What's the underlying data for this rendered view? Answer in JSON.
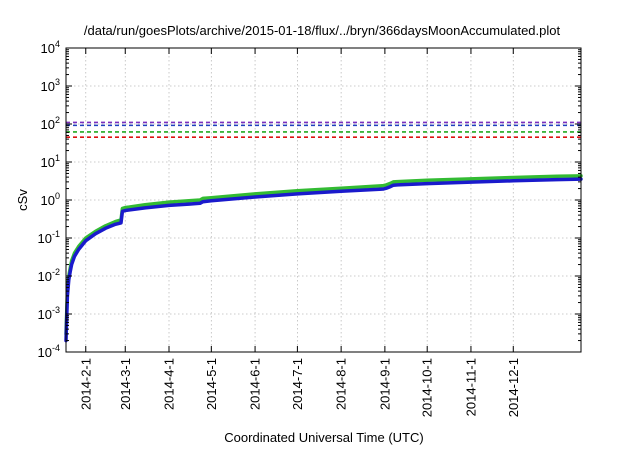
{
  "chart_data": {
    "type": "line",
    "title": "/data/run/goesPlots/archive/2015-01-18/flux/../bryn/366daysMoonAccumulated.plot",
    "xlabel": "Coordinated Universal Time (UTC)",
    "ylabel": "cSv",
    "x_range": [
      "2014-01-18",
      "2015-01-18"
    ],
    "ylim": [
      0.0001,
      10000
    ],
    "y_scale": "log",
    "grid": true,
    "y_ticks": [
      {
        "base": "10",
        "exp": "-4",
        "value": 0.0001
      },
      {
        "base": "10",
        "exp": "-3",
        "value": 0.001
      },
      {
        "base": "10",
        "exp": "-2",
        "value": 0.01
      },
      {
        "base": "10",
        "exp": "-1",
        "value": 0.1
      },
      {
        "base": "10",
        "exp": "0",
        "value": 1
      },
      {
        "base": "10",
        "exp": "1",
        "value": 10
      },
      {
        "base": "10",
        "exp": "2",
        "value": 100
      },
      {
        "base": "10",
        "exp": "3",
        "value": 1000
      },
      {
        "base": "10",
        "exp": "4",
        "value": 10000
      }
    ],
    "x_ticks": [
      {
        "label": "2014-2-1",
        "date": "2014-02-01"
      },
      {
        "label": "2014-3-1",
        "date": "2014-03-01"
      },
      {
        "label": "2014-4-1",
        "date": "2014-04-01"
      },
      {
        "label": "2014-5-1",
        "date": "2014-05-01"
      },
      {
        "label": "2014-6-1",
        "date": "2014-06-01"
      },
      {
        "label": "2014-7-1",
        "date": "2014-07-01"
      },
      {
        "label": "2014-8-1",
        "date": "2014-08-01"
      },
      {
        "label": "2014-9-1",
        "date": "2014-09-01"
      },
      {
        "label": "2014-10-1",
        "date": "2014-10-01"
      },
      {
        "label": "2014-11-1",
        "date": "2014-11-01"
      },
      {
        "label": "2014-12-1",
        "date": "2014-12-01"
      }
    ],
    "reference_lines": [
      {
        "value": 110,
        "color": "#7b2fbe",
        "style": "dashed"
      },
      {
        "value": 92,
        "color": "#1f3fbf",
        "style": "dashed"
      },
      {
        "value": 62,
        "color": "#22aa22",
        "style": "dashed"
      },
      {
        "value": 45,
        "color": "#dd1111",
        "style": "dashed"
      }
    ],
    "series": [
      {
        "color": "#33bb33",
        "x": [
          "2014-01-18",
          "2014-01-19",
          "2014-01-20",
          "2014-01-21",
          "2014-01-22",
          "2014-01-24",
          "2014-01-27",
          "2014-02-01",
          "2014-02-08",
          "2014-02-15",
          "2014-02-22",
          "2014-02-26",
          "2014-02-27",
          "2014-03-01",
          "2014-03-15",
          "2014-04-01",
          "2014-04-15",
          "2014-04-23",
          "2014-04-25",
          "2014-05-01",
          "2014-06-01",
          "2014-07-01",
          "2014-08-01",
          "2014-08-31",
          "2014-09-02",
          "2014-09-05",
          "2014-09-07",
          "2014-09-10",
          "2014-10-01",
          "2014-11-01",
          "2014-12-01",
          "2015-01-01",
          "2015-01-18"
        ],
        "y": [
          0.0003,
          0.004,
          0.01,
          0.016,
          0.025,
          0.04,
          0.06,
          0.1,
          0.15,
          0.21,
          0.27,
          0.3,
          0.6,
          0.63,
          0.75,
          0.88,
          0.96,
          1.0,
          1.1,
          1.15,
          1.45,
          1.75,
          2.05,
          2.4,
          2.5,
          2.75,
          3.0,
          3.05,
          3.3,
          3.6,
          3.9,
          4.2,
          4.3
        ]
      },
      {
        "color": "#1a1acc",
        "x": [
          "2014-01-18",
          "2014-01-19",
          "2014-01-20",
          "2014-01-21",
          "2014-01-22",
          "2014-01-24",
          "2014-01-27",
          "2014-02-01",
          "2014-02-08",
          "2014-02-15",
          "2014-02-22",
          "2014-02-26",
          "2014-02-27",
          "2014-03-01",
          "2014-03-15",
          "2014-04-01",
          "2014-04-15",
          "2014-04-23",
          "2014-04-25",
          "2014-05-01",
          "2014-06-01",
          "2014-07-01",
          "2014-08-01",
          "2014-08-31",
          "2014-09-02",
          "2014-09-05",
          "2014-09-07",
          "2014-09-10",
          "2014-10-01",
          "2014-11-01",
          "2014-12-01",
          "2015-01-01",
          "2015-01-18"
        ],
        "y": [
          0.0002,
          0.003,
          0.008,
          0.013,
          0.02,
          0.033,
          0.05,
          0.085,
          0.13,
          0.18,
          0.23,
          0.25,
          0.5,
          0.53,
          0.62,
          0.72,
          0.78,
          0.82,
          0.9,
          0.95,
          1.2,
          1.45,
          1.7,
          1.95,
          2.05,
          2.25,
          2.45,
          2.5,
          2.7,
          2.95,
          3.2,
          3.45,
          3.55
        ]
      }
    ]
  }
}
